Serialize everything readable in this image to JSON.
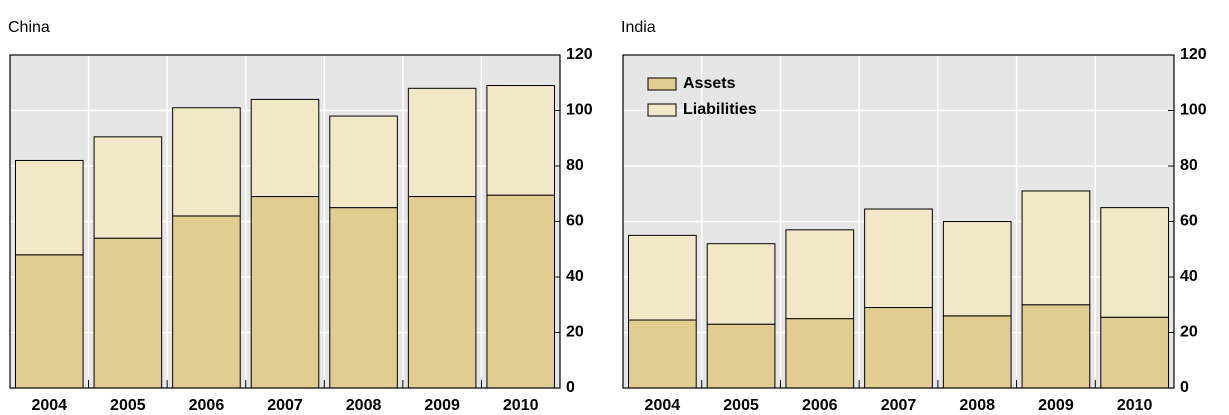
{
  "chart_data": [
    {
      "type": "stacked_bar",
      "title": "China",
      "categories": [
        "2004",
        "2005",
        "2006",
        "2007",
        "2008",
        "2009",
        "2010"
      ],
      "series": [
        {
          "name": "Assets",
          "color": "#e2cd90",
          "values": [
            48,
            54,
            62,
            69,
            65,
            69,
            69.5
          ]
        },
        {
          "name": "Liabilities",
          "color": "#f2e8c8",
          "values": [
            34,
            36.5,
            39,
            35,
            33,
            39,
            39.5
          ]
        }
      ],
      "ylim": [
        0,
        120
      ],
      "yticks": [
        0,
        20,
        40,
        60,
        80,
        100,
        120
      ],
      "grid": true
    },
    {
      "type": "stacked_bar",
      "title": "India",
      "categories": [
        "2004",
        "2005",
        "2006",
        "2007",
        "2008",
        "2009",
        "2010"
      ],
      "series": [
        {
          "name": "Assets",
          "color": "#e2cd90",
          "values": [
            24.5,
            23,
            25,
            29,
            26,
            30,
            25.5
          ]
        },
        {
          "name": "Liabilities",
          "color": "#f2e8c8",
          "values": [
            30.5,
            29,
            32,
            35.5,
            34,
            41,
            39.5
          ]
        }
      ],
      "ylim": [
        0,
        120
      ],
      "yticks": [
        0,
        20,
        40,
        60,
        80,
        100,
        120
      ],
      "grid": true,
      "legend": "upper left"
    }
  ]
}
